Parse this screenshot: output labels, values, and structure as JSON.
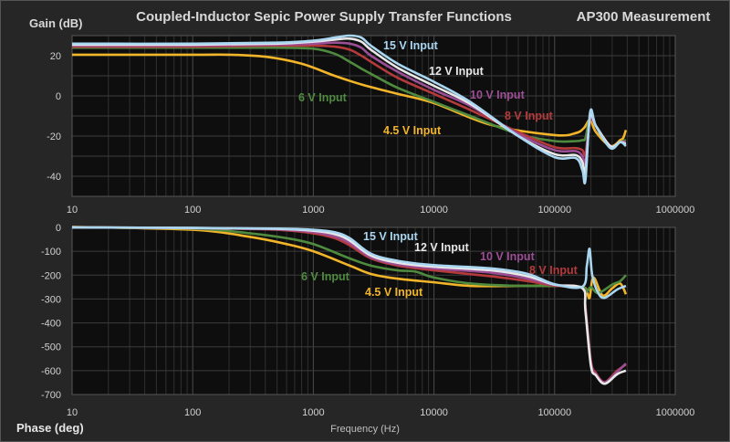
{
  "chart_data": [
    {
      "type": "line",
      "title": "Coupled-Inductor Sepic Power Supply Transfer Functions",
      "subtitle": "AP300 Measurement",
      "ylabel": "Gain (dB)",
      "xlabel": "",
      "x_scale": "log",
      "xlim": [
        10,
        1000000
      ],
      "ylim": [
        -50,
        30
      ],
      "x_ticks": [
        "10",
        "100",
        "1000",
        "10000",
        "100000",
        "1000000"
      ],
      "y_ticks": [
        "20",
        "0",
        "-20",
        "-40"
      ],
      "y_tick_values": [
        20,
        0,
        -20,
        -40
      ],
      "grid": true,
      "series": [
        {
          "name": "15 V Input",
          "color": "#a9d6f0",
          "x": [
            10,
            100,
            500,
            1000,
            1500,
            2000,
            2500,
            3000,
            5000,
            10000,
            20000,
            50000,
            100000,
            150000,
            170000,
            180000,
            197000,
            220000,
            290000,
            350000,
            390000
          ],
          "y": [
            26,
            26,
            26.5,
            27.5,
            29,
            30,
            29,
            25,
            16,
            7,
            -3,
            -20,
            -30.5,
            -31,
            -37,
            -42,
            -8,
            -15,
            -26,
            -23,
            -25
          ]
        },
        {
          "name": "12 V Input",
          "color": "#e8e8e8",
          "x": [
            10,
            100,
            500,
            1000,
            1500,
            2000,
            2500,
            3000,
            5000,
            10000,
            20000,
            50000,
            100000,
            150000,
            170000,
            180000,
            197000,
            220000,
            290000,
            350000,
            390000
          ],
          "y": [
            25.5,
            25.5,
            26,
            27,
            28,
            28.5,
            27,
            23,
            14,
            5,
            -4,
            -20,
            -29,
            -29.5,
            -33,
            -38,
            -10,
            -15,
            -25,
            -23,
            -24
          ]
        },
        {
          "name": "10 V Input",
          "color": "#9c4f97",
          "x": [
            10,
            100,
            500,
            1000,
            1500,
            2000,
            2500,
            3000,
            5000,
            10000,
            20000,
            50000,
            100000,
            150000,
            170000,
            180000,
            197000,
            220000,
            290000,
            350000,
            390000
          ],
          "y": [
            25,
            25,
            25.5,
            26,
            26.5,
            26,
            24,
            20,
            12,
            3,
            -5,
            -19,
            -27,
            -27.5,
            -30,
            -33,
            -11,
            -15,
            -25,
            -23,
            -23
          ]
        },
        {
          "name": "8 V Input",
          "color": "#b53a3c",
          "x": [
            10,
            100,
            500,
            1000,
            1500,
            2000,
            2500,
            3000,
            5000,
            10000,
            20000,
            50000,
            100000,
            150000,
            170000,
            180000,
            197000,
            220000,
            290000,
            350000,
            390000
          ],
          "y": [
            24.5,
            24.5,
            25,
            25,
            24.5,
            23,
            20,
            17,
            9,
            1,
            -7,
            -18,
            -25.5,
            -26,
            -27,
            -29,
            -12,
            -15,
            -25,
            -23,
            -23
          ]
        },
        {
          "name": "6 V Input",
          "color": "#4f8b3f",
          "x": [
            10,
            100,
            500,
            1000,
            1500,
            2000,
            2600,
            3000,
            5000,
            10000,
            20000,
            50000,
            100000,
            150000,
            170000,
            180000,
            197000,
            220000,
            290000,
            350000,
            390000
          ],
          "y": [
            24,
            24,
            24,
            23.5,
            21,
            17,
            13,
            11,
            4,
            -3,
            -10,
            -19,
            -22.5,
            -22.5,
            -22,
            -21,
            -11,
            -15,
            -25,
            -23,
            -22
          ]
        },
        {
          "name": "4.5 V Input",
          "color": "#f2b52a",
          "x": [
            10,
            100,
            200,
            400,
            800,
            1500,
            2600,
            5000,
            10000,
            30000,
            100000,
            150000,
            175000,
            197000,
            220000,
            290000,
            350000,
            370000,
            390000
          ],
          "y": [
            20.5,
            20.5,
            20.5,
            19.5,
            16,
            10,
            5.4,
            1,
            -3.6,
            -14.5,
            -19.5,
            -18.5,
            -16,
            -12,
            -18,
            -25,
            -22,
            -21,
            -17
          ]
        }
      ]
    },
    {
      "type": "line",
      "ylabel": "Phase (deg)",
      "xlabel": "Frequency (Hz)",
      "x_scale": "log",
      "xlim": [
        10,
        1000000
      ],
      "ylim": [
        -700,
        0
      ],
      "x_ticks": [
        "10",
        "100",
        "1000",
        "10000",
        "100000",
        "1000000"
      ],
      "y_ticks": [
        "0",
        "-100",
        "-200",
        "-300",
        "-400",
        "-500",
        "-600",
        "-700"
      ],
      "y_tick_values": [
        0,
        -100,
        -200,
        -300,
        -400,
        -500,
        -600,
        -700
      ],
      "grid": true,
      "series": [
        {
          "name": "15 V Input",
          "color": "#a9d6f0",
          "x": [
            10,
            100,
            500,
            1000,
            1500,
            2000,
            3000,
            5000,
            10000,
            30000,
            60000,
            100000,
            170000,
            185000,
            195000,
            205000,
            230000,
            260000,
            330000,
            390000
          ],
          "y": [
            0,
            -2,
            -5,
            -10,
            -20,
            -45,
            -110,
            -140,
            -158,
            -172,
            -195,
            -238,
            -248,
            -160,
            -90,
            -200,
            -275,
            -295,
            -260,
            -245
          ]
        },
        {
          "name": "12 V Input",
          "color": "#e8e8e8",
          "x": [
            10,
            100,
            500,
            1000,
            1500,
            2000,
            3000,
            5000,
            10000,
            30000,
            60000,
            100000,
            170000,
            180000,
            200000,
            220000,
            260000,
            330000,
            390000
          ],
          "y": [
            0,
            -2,
            -6,
            -14,
            -28,
            -55,
            -118,
            -148,
            -165,
            -180,
            -205,
            -240,
            -255,
            -350,
            -580,
            -620,
            -655,
            -615,
            -600
          ]
        },
        {
          "name": "10 V Input",
          "color": "#9c4f97",
          "x": [
            10,
            100,
            500,
            1000,
            1500,
            2000,
            3000,
            5000,
            10000,
            30000,
            60000,
            100000,
            170000,
            180000,
            200000,
            220000,
            260000,
            330000,
            390000
          ],
          "y": [
            0,
            -3,
            -8,
            -20,
            -38,
            -65,
            -125,
            -155,
            -172,
            -190,
            -215,
            -242,
            -255,
            -340,
            -570,
            -615,
            -650,
            -605,
            -570
          ]
        },
        {
          "name": "8 V Input",
          "color": "#b53a3c",
          "x": [
            10,
            100,
            500,
            1000,
            1500,
            2000,
            3000,
            5000,
            10000,
            30000,
            60000,
            100000,
            170000,
            180000,
            200000,
            220000,
            260000,
            330000,
            390000
          ],
          "y": [
            0,
            -3,
            -10,
            -25,
            -45,
            -75,
            -130,
            -160,
            -180,
            -205,
            -225,
            -244,
            -255,
            -330,
            -560,
            -610,
            -648,
            -600,
            -575
          ]
        },
        {
          "name": "6 V Input",
          "color": "#4f8b3f",
          "x": [
            10,
            100,
            300,
            600,
            1000,
            2000,
            3000,
            5000,
            7000,
            10000,
            20000,
            50000,
            100000,
            170000,
            185000,
            200000,
            230000,
            300000,
            350000,
            390000
          ],
          "y": [
            0,
            -5,
            -25,
            -45,
            -70,
            -130,
            -160,
            -180,
            -185,
            -210,
            -235,
            -245,
            -245,
            -250,
            -270,
            -250,
            -275,
            -240,
            -225,
            -200
          ]
        },
        {
          "name": "4.5 V Input",
          "color": "#f2b52a",
          "x": [
            10,
            100,
            300,
            600,
            1000,
            2000,
            3000,
            5000,
            10000,
            20000,
            50000,
            100000,
            170000,
            185000,
            195000,
            210000,
            250000,
            300000,
            350000,
            390000
          ],
          "y": [
            2,
            -10,
            -40,
            -70,
            -100,
            -160,
            -195,
            -215,
            -230,
            -245,
            -245,
            -245,
            -250,
            -270,
            -295,
            -210,
            -285,
            -255,
            -235,
            -280
          ]
        }
      ]
    }
  ]
}
